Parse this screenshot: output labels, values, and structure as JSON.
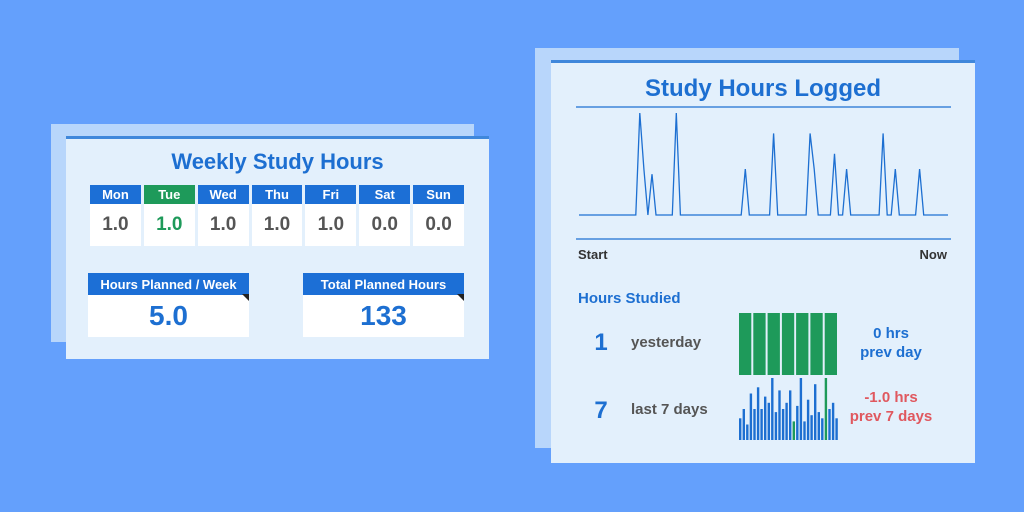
{
  "weekly": {
    "title": "Weekly Study Hours",
    "days": [
      {
        "label": "Mon",
        "value": "1.0"
      },
      {
        "label": "Tue",
        "value": "1.0"
      },
      {
        "label": "Wed",
        "value": "1.0"
      },
      {
        "label": "Thu",
        "value": "1.0"
      },
      {
        "label": "Fri",
        "value": "1.0"
      },
      {
        "label": "Sat",
        "value": "0.0"
      },
      {
        "label": "Sun",
        "value": "0.0"
      }
    ],
    "highlighted_day": "Tue",
    "planned": {
      "label": "Hours Planned  / Week",
      "value": "5.0"
    },
    "total": {
      "label": "Total Planned Hours",
      "value": "133"
    }
  },
  "logged": {
    "title": "Study Hours Logged",
    "axis_start": "Start",
    "axis_now": "Now",
    "section_label": "Hours Studied",
    "yesterday": {
      "number": "1",
      "label": "yesterday",
      "delta_line1": "0 hrs",
      "delta_line2": "prev day"
    },
    "week": {
      "number": "7",
      "label": "last 7 days",
      "delta_line1": "-1.0 hrs",
      "delta_line2": "prev 7 days"
    }
  },
  "colors": {
    "background": "#64a0fc",
    "primary_blue": "#1d6fd1",
    "header_blue": "#1c6fd6",
    "accent_green": "#1e9a5a",
    "negative_red": "#e0585f",
    "card_bg": "#e3f0fc"
  },
  "chart_data": [
    {
      "type": "line",
      "title": "Study Hours Logged",
      "xlabel": "",
      "ylabel": "",
      "x_tick_labels": [
        "Start",
        "Now"
      ],
      "values": [
        0,
        0,
        0,
        0,
        0,
        0,
        0,
        0,
        0,
        0,
        0,
        0,
        0,
        0,
        0,
        2,
        0.9,
        0,
        0.8,
        0,
        0,
        0,
        0,
        0,
        2,
        0,
        0,
        0,
        0,
        0,
        0,
        0,
        0,
        0,
        0,
        0,
        0,
        0,
        0,
        0,
        0,
        0.9,
        0,
        0,
        0,
        0,
        0,
        0,
        1.6,
        0,
        0,
        0,
        0,
        0,
        0,
        0,
        0,
        1.6,
        0.9,
        0,
        0,
        0,
        0,
        1.2,
        0,
        0,
        0.9,
        0,
        0,
        0,
        0,
        0,
        0,
        0,
        0,
        1.6,
        0,
        0,
        0.9,
        0,
        0,
        0,
        0,
        0,
        0.9,
        0,
        0,
        0,
        0,
        0,
        0,
        0
      ],
      "grid": false
    },
    {
      "type": "bar",
      "name": "yesterday",
      "values": [
        1,
        1,
        1,
        1,
        1,
        1,
        1
      ],
      "grid": false
    },
    {
      "type": "bar",
      "name": "last 7 days",
      "values": [
        0.35,
        0.5,
        0.25,
        0.75,
        0.5,
        0.85,
        0.5,
        0.7,
        0.6,
        1.0,
        0.45,
        0.8,
        0.5,
        0.6,
        0.8,
        0.3,
        0.55,
        1.0,
        0.3,
        0.65,
        0.4,
        0.9,
        0.45,
        0.35,
        1.0,
        0.5,
        0.6,
        0.35
      ],
      "highlight": [
        false,
        false,
        false,
        false,
        false,
        false,
        false,
        false,
        false,
        false,
        false,
        false,
        false,
        false,
        false,
        true,
        false,
        false,
        false,
        false,
        false,
        false,
        false,
        false,
        true,
        false,
        false,
        false
      ],
      "grid": false
    }
  ]
}
